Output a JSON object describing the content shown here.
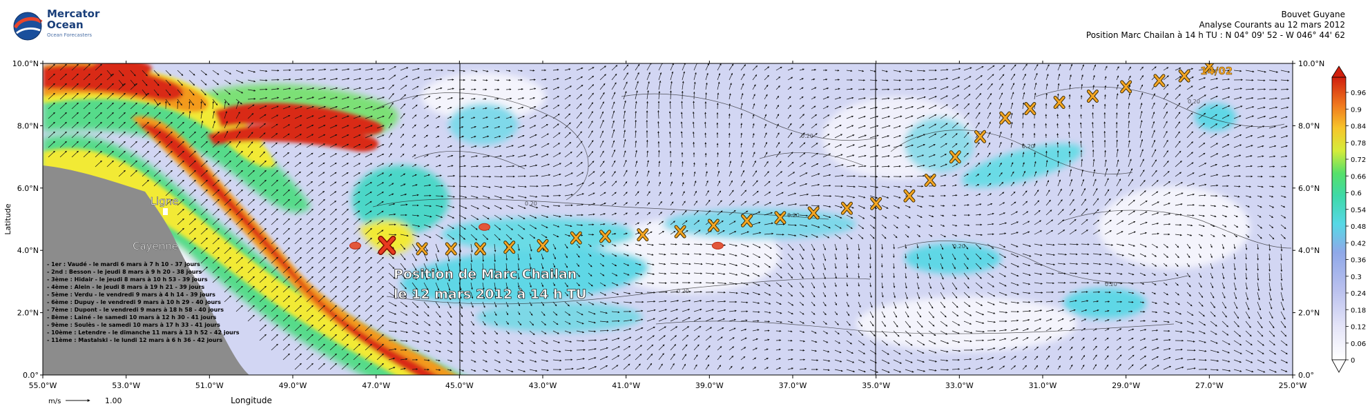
{
  "logo": {
    "line1": "Mercator",
    "line2": "Ocean",
    "tagline": "Ocean Forecasters"
  },
  "header": {
    "line1": "Bouvet Guyane",
    "line2": "Analyse Courants au 12 mars 2012",
    "line3": "Position Marc Chailan à 14 h TU : N 04° 09' 52 - W 046° 44' 62"
  },
  "map": {
    "lat_ticks": [
      "10.0°N",
      "8.0°N",
      "6.0°N",
      "4.0°N",
      "2.0°N",
      "0.0°"
    ],
    "lon_ticks": [
      "55.0°W",
      "53.0°W",
      "51.0°W",
      "49.0°W",
      "47.0°W",
      "45.0°W",
      "43.0°W",
      "41.0°W",
      "39.0°W",
      "37.0°W",
      "35.0°W",
      "33.0°W",
      "31.0°W",
      "29.0°W",
      "27.0°W",
      "25.0°W"
    ],
    "xlabel": "Longitude",
    "ylabel": "Latitude",
    "place_labels": {
      "ligne": "Ligne",
      "cayenne": "Cayenne"
    },
    "date_label": "14/02",
    "annotation_line1": "Position de Marc Chailan",
    "annotation_line2": "le 12 mars 2012 à 14 h TU",
    "vector_scale_unit": "m/s",
    "vector_scale_value": "1.00",
    "contour_label": "0.20",
    "colorbar_ticks": [
      "0.96",
      "0.9",
      "0.84",
      "0.78",
      "0.72",
      "0.66",
      "0.6",
      "0.54",
      "0.48",
      "0.42",
      "0.36",
      "0.3",
      "0.24",
      "0.18",
      "0.12",
      "0.06",
      "0"
    ],
    "colors": {
      "land": "#8c8c8c",
      "calm": "#ffffff",
      "weak": "#c8cdf0",
      "cyan": "#5fd7e6",
      "green": "#3ee08a",
      "yellow": "#f2ea35",
      "orange": "#f39a1f",
      "red": "#d92a12",
      "marker": "#f5a623"
    }
  },
  "arrivals": [
    "- 1er : Vaudé - le mardi 6 mars à 7 h 10 - 37 jours",
    "- 2nd : Besson - le jeudi 8 mars à 9 h 20 - 38 jours",
    "- 3ème : Hidair - le jeudi 8 mars à 10 h 53 - 39 jours",
    "- 4ème : Alein - le jeudi 8 mars à 19 h 21 - 39 jours",
    "- 5ème : Verdu - le vendredi 9 mars à 4 h 14 - 39 jours",
    "- 6ème : Dupuy - le vendredi 9 mars à 10 h 29 - 40 jours",
    "- 7ème : Dupont - le vendredi 9 mars à 18 h 58 - 40 jours",
    "- 8ème : Lainé - le samedi 10 mars à 12 h 30 - 41 jours",
    "- 9ème : Soulès - le samedi 10 mars à 17 h 33 - 41 jours",
    "- 10ème : Letendre - le dimanche 11 mars à 13 h 52 - 42 jours",
    "- 11ème : Mastalski - le lundi 12 mars à 6 h 36 - 42 jours"
  ],
  "track_positions": [
    {
      "lon": -45.9,
      "lat": 4.05
    },
    {
      "lon": -45.2,
      "lat": 4.05
    },
    {
      "lon": -44.5,
      "lat": 4.05
    },
    {
      "lon": -43.8,
      "lat": 4.1
    },
    {
      "lon": -43.0,
      "lat": 4.15
    },
    {
      "lon": -42.2,
      "lat": 4.4
    },
    {
      "lon": -41.5,
      "lat": 4.45
    },
    {
      "lon": -40.6,
      "lat": 4.5
    },
    {
      "lon": -39.7,
      "lat": 4.6
    },
    {
      "lon": -38.9,
      "lat": 4.8
    },
    {
      "lon": -38.1,
      "lat": 4.95
    },
    {
      "lon": -37.3,
      "lat": 5.05
    },
    {
      "lon": -36.5,
      "lat": 5.2
    },
    {
      "lon": -35.7,
      "lat": 5.35
    },
    {
      "lon": -35.0,
      "lat": 5.5
    },
    {
      "lon": -34.2,
      "lat": 5.75
    },
    {
      "lon": -33.7,
      "lat": 6.25
    },
    {
      "lon": -33.1,
      "lat": 7.0
    },
    {
      "lon": -32.5,
      "lat": 7.65
    },
    {
      "lon": -31.9,
      "lat": 8.25
    },
    {
      "lon": -31.3,
      "lat": 8.55
    },
    {
      "lon": -30.6,
      "lat": 8.75
    },
    {
      "lon": -29.8,
      "lat": 8.95
    },
    {
      "lon": -29.0,
      "lat": 9.25
    },
    {
      "lon": -28.2,
      "lat": 9.45
    },
    {
      "lon": -27.6,
      "lat": 9.6
    },
    {
      "lon": -27.0,
      "lat": 9.9
    }
  ],
  "current_position": {
    "lon": -46.74,
    "lat": 4.16
  },
  "eddy_markers": [
    {
      "lon": -47.5,
      "lat": 4.15
    },
    {
      "lon": -44.4,
      "lat": 4.75
    },
    {
      "lon": -38.8,
      "lat": 4.15
    }
  ]
}
